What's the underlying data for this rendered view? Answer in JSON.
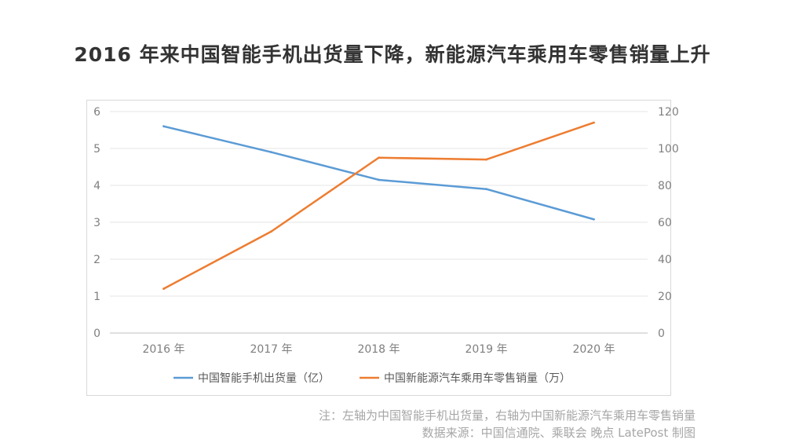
{
  "title": "2016 年来中国智能手机出货量下降，新能源汽车乘用车零售销量上升",
  "chart_data": {
    "type": "line",
    "categories": [
      "2016 年",
      "2017 年",
      "2018 年",
      "2019 年",
      "2020 年"
    ],
    "series": [
      {
        "name": "中国智能手机出货量（亿）",
        "axis": "left",
        "color": "#5b9bd5",
        "values": [
          5.6,
          4.9,
          4.15,
          3.9,
          3.08
        ]
      },
      {
        "name": "中国新能源汽车乘用车零售销量（万）",
        "axis": "right",
        "color": "#ed7d31",
        "values": [
          24,
          55,
          95,
          94,
          114
        ]
      }
    ],
    "y_left": {
      "min": 0,
      "max": 6,
      "ticks": [
        "0",
        "1",
        "2",
        "3",
        "4",
        "5",
        "6"
      ]
    },
    "y_right": {
      "min": 0,
      "max": 120,
      "ticks": [
        "0",
        "20",
        "40",
        "60",
        "80",
        "100",
        "120"
      ]
    },
    "grid": true,
    "legend": "bottom"
  },
  "notes": {
    "line1": "注：左轴为中国智能手机出货量，右轴为中国新能源汽车乘用车零售销量",
    "line2": "数据来源：中国信通院、乘联会 晚点 LatePost 制图"
  }
}
